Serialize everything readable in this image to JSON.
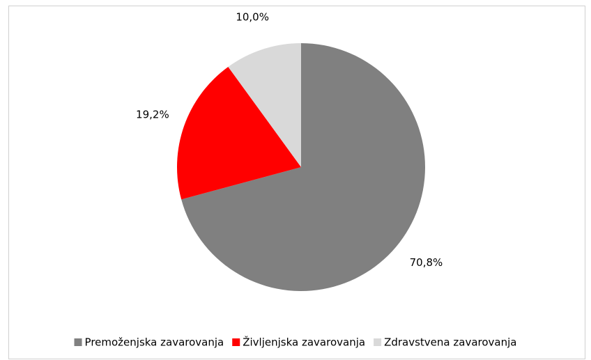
{
  "chart_data": {
    "type": "pie",
    "categories": [
      "Premoženjska zavarovanja",
      "Življenjska zavarovanja",
      "Zdravstvena zavarovanja"
    ],
    "values": [
      70.8,
      19.2,
      10.0
    ],
    "value_labels": [
      "70,8%",
      "19,2%",
      "10,0%"
    ],
    "colors": [
      "#808080",
      "#ff0000",
      "#d9d9d9"
    ],
    "legend": "bottom"
  }
}
